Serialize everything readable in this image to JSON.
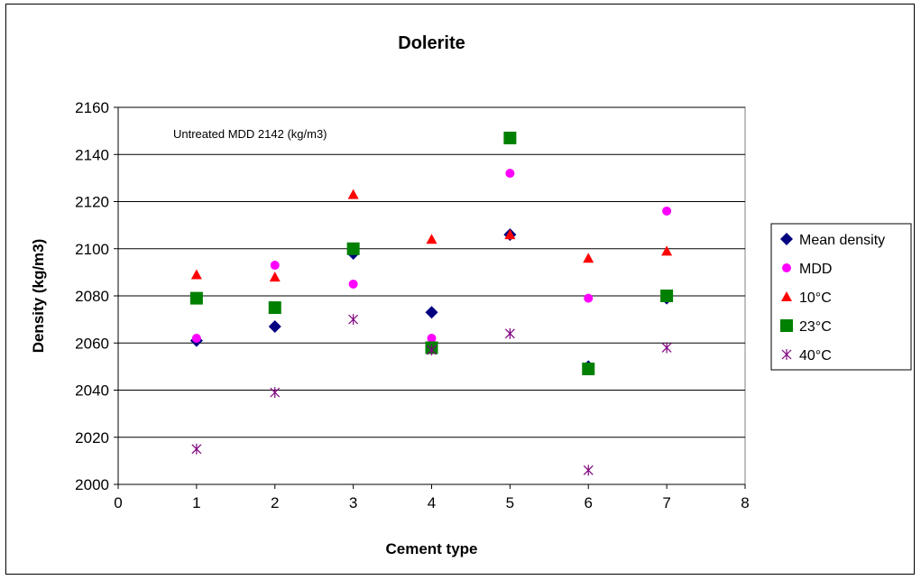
{
  "chart_data": {
    "type": "scatter",
    "title": "Dolerite",
    "xlabel": "Cement type",
    "ylabel": "Density (kg/m3)",
    "xlim": [
      0,
      8
    ],
    "ylim": [
      2000,
      2160
    ],
    "xticks": [
      0,
      1,
      2,
      3,
      4,
      5,
      6,
      7,
      8
    ],
    "yticks": [
      2000,
      2020,
      2040,
      2060,
      2080,
      2100,
      2120,
      2140,
      2160
    ],
    "grid": "horizontal",
    "legend_position": "right",
    "annotation": "Untreated MDD 2142 (kg/m3)",
    "x": [
      1,
      2,
      3,
      4,
      5,
      6,
      7
    ],
    "series": [
      {
        "name": "Mean density",
        "marker": "diamond",
        "color": "#000080",
        "values": [
          2061,
          2067,
          2098,
          2073,
          2106,
          2050,
          2079
        ]
      },
      {
        "name": "MDD",
        "marker": "circle",
        "color": "#ff00ff",
        "values": [
          2062,
          2093,
          2085,
          2062,
          2132,
          2079,
          2116
        ]
      },
      {
        "name": "10°C",
        "marker": "triangle",
        "color": "#ff0000",
        "values": [
          2089,
          2088,
          2123,
          2104,
          2106,
          2096,
          2099
        ]
      },
      {
        "name": "23°C",
        "marker": "square",
        "color": "#008000",
        "values": [
          2079,
          2075,
          2100,
          2058,
          2147,
          2049,
          2080
        ]
      },
      {
        "name": "40°C",
        "marker": "star",
        "color": "#800080",
        "values": [
          2015,
          2039,
          2070,
          2057,
          2064,
          2006,
          2058
        ]
      }
    ]
  }
}
